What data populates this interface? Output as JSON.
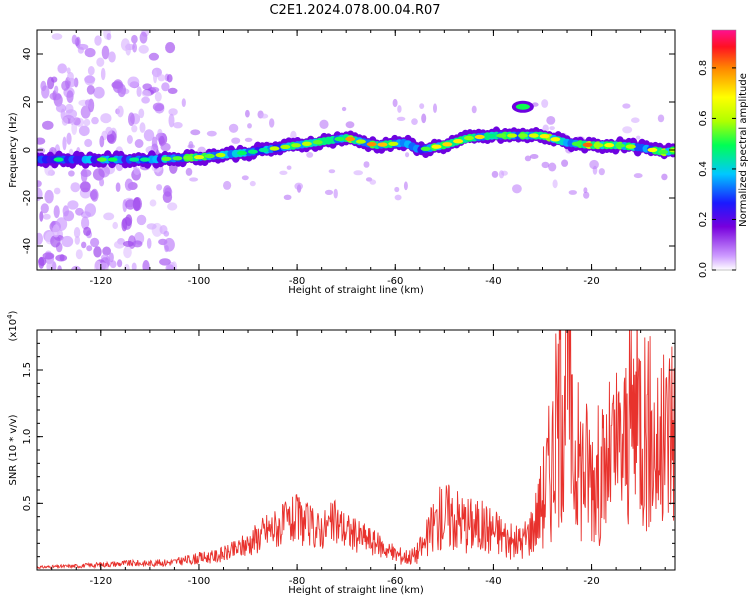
{
  "title": "C2E1.2024.078.00.04.R07",
  "chart_data": [
    {
      "type": "heatmap",
      "xlabel": "Height of straight line (km)",
      "ylabel": "Frequency (Hz)",
      "xlim": [
        -133,
        -3
      ],
      "ylim": [
        -50,
        50
      ],
      "x_ticks": [
        -120,
        -100,
        -80,
        -60,
        -40,
        -20
      ],
      "x_tick_labels": [
        "-120",
        "-100",
        "-80",
        "-60",
        "-40",
        "-20"
      ],
      "y_ticks": [
        -40,
        -20,
        0,
        20,
        40
      ],
      "y_tick_labels": [
        "-40",
        "-20",
        "0",
        "20",
        "40"
      ],
      "colorbar": {
        "label": "Normalized spectral amplitude",
        "range": [
          0,
          0.95
        ],
        "ticks": [
          0.0,
          0.2,
          0.4,
          0.6,
          0.8
        ],
        "tick_labels": [
          "0.0",
          "0.2",
          "0.4",
          "0.6",
          "0.8"
        ]
      },
      "ridge_frequency": {
        "x": [
          -133,
          -120,
          -110,
          -100,
          -90,
          -80,
          -70,
          -64,
          -58,
          -55,
          -50,
          -45,
          -40,
          -35,
          -30,
          -25,
          -20,
          -15,
          -10,
          -5,
          -3
        ],
        "y": [
          -4,
          -4,
          -4,
          -3,
          -1,
          2,
          5,
          2,
          3,
          0,
          2,
          5,
          6,
          6,
          6,
          3,
          2,
          2,
          1,
          -1,
          0
        ]
      },
      "peak_amplitude": {
        "x": [
          -133,
          -120,
          -110,
          -100,
          -90,
          -80,
          -70,
          -64,
          -58,
          -55,
          -50,
          -45,
          -40,
          -35,
          -30,
          -25,
          -20,
          -15,
          -10,
          -5,
          -3
        ],
        "y": [
          0.55,
          0.55,
          0.5,
          0.85,
          0.55,
          0.7,
          0.8,
          0.85,
          0.6,
          0.5,
          0.95,
          0.7,
          0.75,
          0.75,
          0.9,
          0.6,
          0.9,
          0.85,
          0.6,
          0.85,
          0.9
        ]
      },
      "isolated_feature": {
        "x": -34,
        "y": 18,
        "amplitude": 0.5
      }
    },
    {
      "type": "line",
      "xlabel": "Height of straight line (km)",
      "ylabel": "SNR (10 * v/v)",
      "y_multiplier": "(x10",
      "y_multiplier_exp": "4",
      "y_multiplier_close": ")",
      "xlim": [
        -133,
        -3
      ],
      "ylim": [
        0,
        1.8
      ],
      "x_ticks": [
        -120,
        -100,
        -80,
        -60,
        -40,
        -20
      ],
      "x_tick_labels": [
        "-120",
        "-100",
        "-80",
        "-60",
        "-40",
        "-20"
      ],
      "y_ticks": [
        0.5,
        1.0,
        1.5
      ],
      "y_tick_labels": [
        "0.5",
        "1.0",
        "1.5"
      ],
      "series": [
        {
          "color": "#e8322d",
          "x": [
            -133,
            -125,
            -120,
            -115,
            -110,
            -105,
            -100,
            -97,
            -94,
            -92,
            -90,
            -88,
            -86,
            -84,
            -82,
            -80,
            -78,
            -76,
            -74,
            -72,
            -70,
            -68,
            -66,
            -64,
            -62,
            -60,
            -58,
            -56,
            -54,
            -52,
            -50,
            -48,
            -46,
            -44,
            -42,
            -40,
            -38,
            -36,
            -34,
            -32,
            -30,
            -28,
            -26,
            -25,
            -24,
            -22,
            -20,
            -18,
            -16,
            -14,
            -12,
            -10,
            -8,
            -6,
            -4,
            -3
          ],
          "y": [
            0.02,
            0.03,
            0.04,
            0.05,
            0.05,
            0.06,
            0.09,
            0.1,
            0.13,
            0.16,
            0.2,
            0.25,
            0.3,
            0.32,
            0.35,
            0.38,
            0.34,
            0.3,
            0.32,
            0.36,
            0.3,
            0.26,
            0.24,
            0.2,
            0.16,
            0.12,
            0.1,
            0.11,
            0.2,
            0.35,
            0.42,
            0.4,
            0.36,
            0.34,
            0.32,
            0.3,
            0.26,
            0.2,
            0.22,
            0.32,
            0.55,
            0.85,
            1.4,
            1.8,
            0.9,
            0.8,
            0.75,
            0.7,
            0.85,
            0.9,
            1.1,
            1.25,
            1.0,
            0.85,
            1.1,
            1.2
          ]
        }
      ]
    }
  ]
}
